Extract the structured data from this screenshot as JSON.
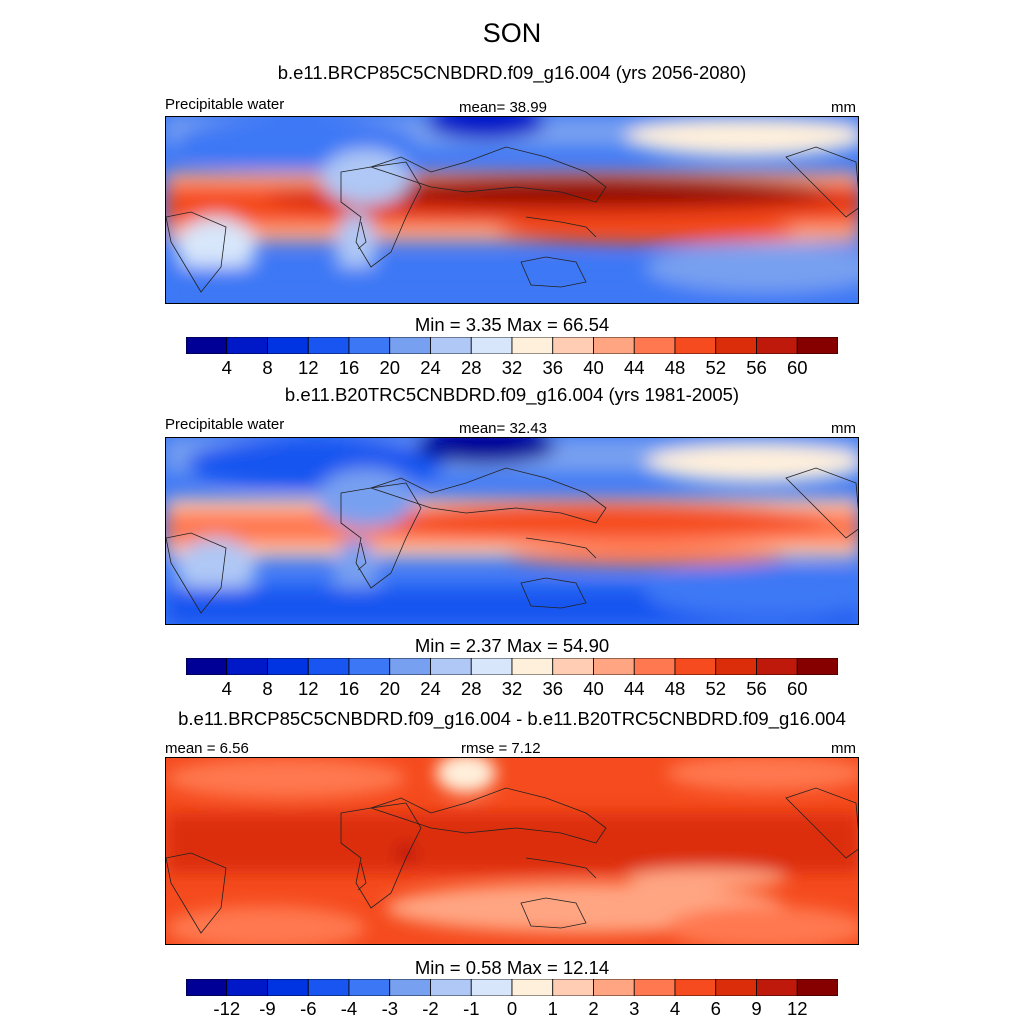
{
  "title": "SON",
  "panels": [
    {
      "subtitle": "b.e11.BRCP85C5CNBDRD.f09_g16.004 (yrs 2056-2080)",
      "left_label": "Precipitable water",
      "center_label": "mean=  38.99",
      "right_label": "mm",
      "minmax": "Min =   3.35 Max =  66.54",
      "colorbar_labels": [
        "4",
        "8",
        "12",
        "16",
        "20",
        "24",
        "28",
        "32",
        "36",
        "40",
        "44",
        "48",
        "52",
        "56",
        "60"
      ],
      "colors": [
        "#000096",
        "#0019c8",
        "#0033e1",
        "#1955f0",
        "#3c78f5",
        "#78a0f0",
        "#afc8f5",
        "#d7e6fa",
        "#fff0dc",
        "#ffcdb4",
        "#ffa582",
        "#ff7850",
        "#f54b1e",
        "#dc2d0a",
        "#be190a",
        "#870000"
      ]
    },
    {
      "subtitle": "b.e11.B20TRC5CNBDRD.f09_g16.004 (yrs 1981-2005)",
      "left_label": "Precipitable water",
      "center_label": "mean=  32.43",
      "right_label": "mm",
      "minmax": "Min =   2.37 Max =  54.90",
      "colorbar_labels": [
        "4",
        "8",
        "12",
        "16",
        "20",
        "24",
        "28",
        "32",
        "36",
        "40",
        "44",
        "48",
        "52",
        "56",
        "60"
      ],
      "colors": [
        "#000096",
        "#0019c8",
        "#0033e1",
        "#1955f0",
        "#3c78f5",
        "#78a0f0",
        "#afc8f5",
        "#d7e6fa",
        "#fff0dc",
        "#ffcdb4",
        "#ffa582",
        "#ff7850",
        "#f54b1e",
        "#dc2d0a",
        "#be190a",
        "#870000"
      ]
    },
    {
      "subtitle": "b.e11.BRCP85C5CNBDRD.f09_g16.004 - b.e11.B20TRC5CNBDRD.f09_g16.004",
      "left_label": "mean =   6.56",
      "center_label": "rmse =   7.12",
      "right_label": "mm",
      "minmax": "Min =   0.58 Max =  12.14",
      "colorbar_labels": [
        "-12",
        "-9",
        "-6",
        "-4",
        "-3",
        "-2",
        "-1",
        "0",
        "1",
        "2",
        "3",
        "4",
        "6",
        "9",
        "12"
      ],
      "colors": [
        "#000096",
        "#0019c8",
        "#0033e1",
        "#1955f0",
        "#3c78f5",
        "#78a0f0",
        "#afc8f5",
        "#d7e6fa",
        "#fff0dc",
        "#ffcdb4",
        "#ffa582",
        "#ff7850",
        "#f54b1e",
        "#dc2d0a",
        "#be190a",
        "#870000"
      ]
    }
  ]
}
